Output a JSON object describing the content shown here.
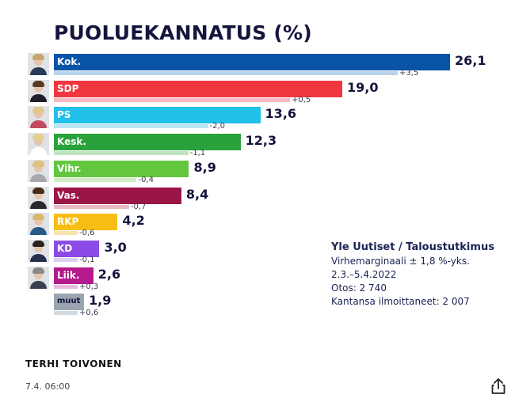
{
  "chart_data": {
    "type": "bar",
    "title": "PUOLUEKANNATUS (%)",
    "categories": [
      "Kok.",
      "SDP",
      "PS",
      "Kesk.",
      "Vihr.",
      "Vas.",
      "RKP",
      "KD",
      "Liik.",
      "muut"
    ],
    "values": [
      26.1,
      19.0,
      13.6,
      12.3,
      8.9,
      8.4,
      4.2,
      3.0,
      2.6,
      1.9
    ],
    "value_labels": [
      "26,1",
      "19,0",
      "13,6",
      "12,3",
      "8,9",
      "8,4",
      "4,2",
      "3,0",
      "2,6",
      "1,9"
    ],
    "changes": [
      3.5,
      0.5,
      -2.0,
      -1.1,
      -0.4,
      -0.7,
      -0.6,
      -0.1,
      0.3,
      0.6
    ],
    "change_labels": [
      "+3,5",
      "+0,5",
      "-2,0",
      "-1,1",
      "-0,4",
      "-0,7",
      "-0,6",
      "-0,1",
      "+0,3",
      "+0,6"
    ],
    "colors": [
      "#0a54a8",
      "#f0363f",
      "#20c0e8",
      "#2aa23c",
      "#63c63f",
      "#9c1547",
      "#f7bd14",
      "#8c4ae6",
      "#b41a8c",
      "#9aa5b1"
    ],
    "change_colors": [
      "#b8d3ea",
      "#f7bcc3",
      "#b8e6f5",
      "#c2e3c2",
      "#d2edc3",
      "#e7bbc8",
      "#f8e3ac",
      "#dccef5",
      "#e9bcdf",
      "#d3dae0"
    ],
    "xlim": [
      0,
      27
    ],
    "grid": false,
    "legend": "none"
  },
  "avatars": [
    {
      "hair": "#c9a66b",
      "body": "#2c3a55"
    },
    {
      "hair": "#5a3a22",
      "body": "#1f1f2a"
    },
    {
      "hair": "#e0c98a",
      "body": "#c44a60"
    },
    {
      "hair": "#e6d08e",
      "body": "#ffffff"
    },
    {
      "hair": "#dcc27a",
      "body": "#a8a8b0"
    },
    {
      "hair": "#4a2c1c",
      "body": "#2a2a2e"
    },
    {
      "hair": "#d9b86e",
      "body": "#2a5a8a"
    },
    {
      "hair": "#2a2220",
      "body": "#26304a"
    },
    {
      "hair": "#8a8a8a",
      "body": "#3a4050"
    }
  ],
  "source": {
    "title": "Yle Uutiset / Taloustutkimus",
    "lines": [
      "Virhemarginaali ± 1,8 %-yks.",
      "2.3.–5.4.2022",
      "Otos: 2 740",
      "Kantansa ilmoittaneet: 2 007"
    ]
  },
  "author": "TERHI TOIVONEN",
  "date": "7.4. 06:00",
  "icons": {
    "share": "share-icon"
  }
}
